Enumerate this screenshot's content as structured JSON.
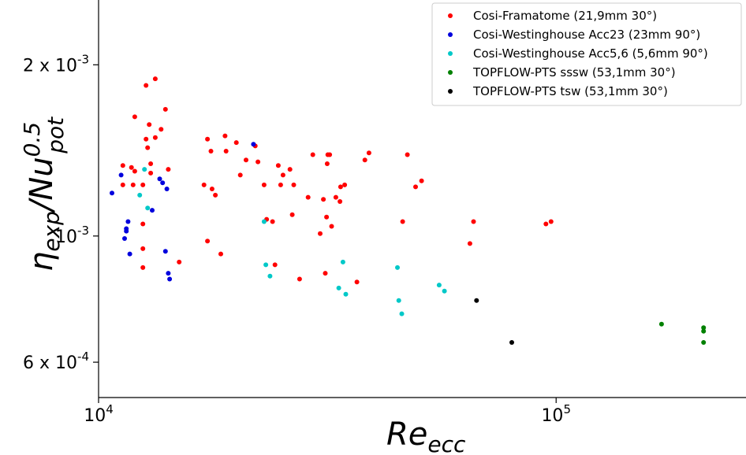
{
  "chart_data": {
    "type": "scatter",
    "title": "",
    "xlabel": {
      "main": "Re",
      "sub": "ecc"
    },
    "ylabel": {
      "main": "η",
      "sub": "exp",
      "mid": "/Nu",
      "sup": "0.5",
      "sub2": "pot"
    },
    "x_scale": "log",
    "y_scale": "log",
    "xlim": [
      10000,
      260000
    ],
    "ylim": [
      0.00052,
      0.0026
    ],
    "x_ticks": [
      {
        "value": 10000,
        "base": "10",
        "exp": "4"
      },
      {
        "value": 100000,
        "base": "10",
        "exp": "5"
      }
    ],
    "y_ticks": [
      {
        "value": 0.0006,
        "base": "6 x 10",
        "exp": "-4"
      },
      {
        "value": 0.001,
        "base": "10",
        "exp": "-3"
      },
      {
        "value": 0.002,
        "base": "2 x 10",
        "exp": "-3"
      }
    ],
    "grid": false,
    "legend_position": "top-right",
    "series": [
      {
        "name": "Cosi-Framatome (21,9mm 30°)",
        "color": "#ff0000",
        "points": [
          [
            11300,
            0.00133
          ],
          [
            11300,
            0.00123
          ],
          [
            11800,
            0.00132
          ],
          [
            11900,
            0.00123
          ],
          [
            12000,
            0.0013
          ],
          [
            12000,
            0.00162
          ],
          [
            12500,
            0.00123
          ],
          [
            12500,
            0.00105
          ],
          [
            12500,
            0.00095
          ],
          [
            12500,
            0.00088
          ],
          [
            12700,
            0.00184
          ],
          [
            12700,
            0.00148
          ],
          [
            12800,
            0.00143
          ],
          [
            12900,
            0.00157
          ],
          [
            13000,
            0.00129
          ],
          [
            13000,
            0.00134
          ],
          [
            13300,
            0.00189
          ],
          [
            13300,
            0.00149
          ],
          [
            13700,
            0.00154
          ],
          [
            14000,
            0.00167
          ],
          [
            14200,
            0.00131
          ],
          [
            15000,
            0.0009
          ],
          [
            17000,
            0.00123
          ],
          [
            17300,
            0.00148
          ],
          [
            17300,
            0.00098
          ],
          [
            17600,
            0.00141
          ],
          [
            17700,
            0.00121
          ],
          [
            18000,
            0.00118
          ],
          [
            18500,
            0.00093
          ],
          [
            18900,
            0.0015
          ],
          [
            19000,
            0.00141
          ],
          [
            20000,
            0.00146
          ],
          [
            20400,
            0.00128
          ],
          [
            21000,
            0.00136
          ],
          [
            22000,
            0.00144
          ],
          [
            22300,
            0.00135
          ],
          [
            23000,
            0.00123
          ],
          [
            23300,
            0.00107
          ],
          [
            24000,
            0.00106
          ],
          [
            24300,
            0.00089
          ],
          [
            24700,
            0.00133
          ],
          [
            25000,
            0.00123
          ],
          [
            25300,
            0.00128
          ],
          [
            26200,
            0.00131
          ],
          [
            26500,
            0.00109
          ],
          [
            26700,
            0.00123
          ],
          [
            27500,
            0.00084
          ],
          [
            28700,
            0.00117
          ],
          [
            29400,
            0.00139
          ],
          [
            30500,
            0.00101
          ],
          [
            31000,
            0.00116
          ],
          [
            31300,
            0.00086
          ],
          [
            31500,
            0.00108
          ],
          [
            31600,
            0.00134
          ],
          [
            31700,
            0.00139
          ],
          [
            32000,
            0.00139
          ],
          [
            32300,
            0.00104
          ],
          [
            33000,
            0.00117
          ],
          [
            33700,
            0.00115
          ],
          [
            33800,
            0.00122
          ],
          [
            34500,
            0.00123
          ],
          [
            36700,
            0.00083
          ],
          [
            38200,
            0.00136
          ],
          [
            39000,
            0.0014
          ],
          [
            46200,
            0.00106
          ],
          [
            47300,
            0.00139
          ],
          [
            49300,
            0.00122
          ],
          [
            50800,
            0.00125
          ],
          [
            64800,
            0.00097
          ],
          [
            66000,
            0.00106
          ],
          [
            95000,
            0.00105
          ],
          [
            97500,
            0.00106
          ]
        ]
      },
      {
        "name": "Cosi-Westinghouse Acc23 (23mm 90°)",
        "color": "#0000dd",
        "points": [
          [
            10700,
            0.00119
          ],
          [
            11200,
            0.00128
          ],
          [
            11400,
            0.00099
          ],
          [
            11500,
            0.00103
          ],
          [
            11500,
            0.00102
          ],
          [
            11600,
            0.00106
          ],
          [
            11700,
            0.00093
          ],
          [
            13100,
            0.00111
          ],
          [
            13600,
            0.00126
          ],
          [
            13800,
            0.00124
          ],
          [
            14000,
            0.00094
          ],
          [
            14100,
            0.00121
          ],
          [
            14200,
            0.00086
          ],
          [
            14300,
            0.00084
          ],
          [
            21800,
            0.00145
          ]
        ]
      },
      {
        "name": "Cosi-Westinghouse Acc5,6 (5,6mm 90°)",
        "color": "#00c8c8",
        "points": [
          [
            12300,
            0.00118
          ],
          [
            12600,
            0.00131
          ],
          [
            12800,
            0.00112
          ],
          [
            23000,
            0.00106
          ],
          [
            23200,
            0.00089
          ],
          [
            23700,
            0.00085
          ],
          [
            33500,
            0.00081
          ],
          [
            34200,
            0.0009
          ],
          [
            34700,
            0.00079
          ],
          [
            45000,
            0.00088
          ],
          [
            45300,
            0.00077
          ],
          [
            46000,
            0.00073
          ],
          [
            55500,
            0.00082
          ],
          [
            57000,
            0.0008
          ]
        ]
      },
      {
        "name": "TOPFLOW-PTS sssw (53,1mm 30°)",
        "color": "#008000",
        "points": [
          [
            170000,
            0.0007
          ],
          [
            210000,
            0.00069
          ],
          [
            210000,
            0.00068
          ],
          [
            210000,
            0.00065
          ]
        ]
      },
      {
        "name": "TOPFLOW-PTS tsw (53,1mm 30°)",
        "color": "#000000",
        "points": [
          [
            67000,
            0.00077
          ],
          [
            80000,
            0.00065
          ]
        ]
      }
    ]
  }
}
